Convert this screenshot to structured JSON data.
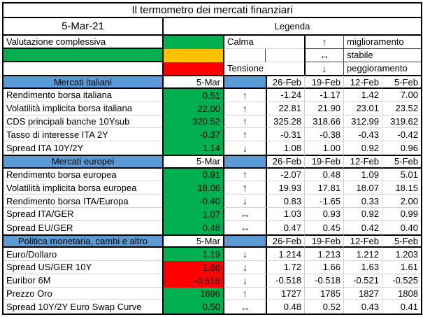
{
  "title": "Il termometro dei mercati finanziari",
  "date": "5-Mar-21",
  "legend": {
    "header": "Legenda",
    "overall_label": "Valutazione complessiva",
    "calm_label": "Calma",
    "tension_label": "Tensione",
    "arrows": [
      {
        "symbol": "↑",
        "label": "miglioramento"
      },
      {
        "symbol": "↔",
        "label": "stabile"
      },
      {
        "symbol": "↓",
        "label": "peggioramento"
      }
    ]
  },
  "colors": {
    "green": "#00B050",
    "yellow": "#FFC000",
    "red": "#FF0000",
    "blue": "#5B9BD5",
    "overall_status": "#00B050"
  },
  "trend_symbols": {
    "up": "↑",
    "stable": "↔",
    "down": "↓"
  },
  "columns": {
    "current": "5-Mar",
    "history": [
      "26-Feb",
      "19-Feb",
      "12-Feb",
      "5-Feb"
    ]
  },
  "sections": [
    {
      "name": "Mercati italiani",
      "rows": [
        {
          "label": "Rendimento borsa italiana",
          "value": "0.51",
          "status": "green",
          "trend": "up",
          "history": [
            "-1.24",
            "-1.17",
            "1.42",
            "7.00"
          ]
        },
        {
          "label": "Volatilità implicita borsa italiana",
          "value": "22.00",
          "status": "green",
          "trend": "up",
          "history": [
            "22.81",
            "21.90",
            "23.01",
            "23.52"
          ]
        },
        {
          "label": "CDS principali banche 10Ysub",
          "value": "320.52",
          "status": "green",
          "trend": "up",
          "history": [
            "325.28",
            "318.66",
            "312.99",
            "319.62"
          ]
        },
        {
          "label": "Tasso di interesse ITA 2Y",
          "value": "-0.37",
          "status": "green",
          "trend": "up",
          "history": [
            "-0.31",
            "-0.38",
            "-0.43",
            "-0.42"
          ]
        },
        {
          "label": "Spread ITA 10Y/2Y",
          "value": "1.14",
          "status": "green",
          "trend": "down",
          "history": [
            "1.08",
            "1.00",
            "0.92",
            "0.96"
          ]
        }
      ]
    },
    {
      "name": "Mercati europei",
      "rows": [
        {
          "label": "Rendimento borsa europea",
          "value": "0.91",
          "status": "green",
          "trend": "up",
          "history": [
            "-2.07",
            "0.48",
            "1.09",
            "5.01"
          ]
        },
        {
          "label": "Volatilità implicita borsa europea",
          "value": "18.06",
          "status": "green",
          "trend": "up",
          "history": [
            "19.93",
            "17.81",
            "18.07",
            "18.15"
          ]
        },
        {
          "label": "Rendimento borsa ITA/Europa",
          "value": "-0.40",
          "status": "green",
          "trend": "down",
          "history": [
            "0.83",
            "-1.65",
            "0.33",
            "2.00"
          ]
        },
        {
          "label": "Spread ITA/GER",
          "value": "1.07",
          "status": "green",
          "trend": "stable",
          "history": [
            "1.03",
            "0.93",
            "0.92",
            "0.99"
          ]
        },
        {
          "label": "Spread EU/GER",
          "value": "0.48",
          "status": "green",
          "trend": "stable",
          "history": [
            "0.47",
            "0.45",
            "0.42",
            "0.40"
          ]
        }
      ]
    },
    {
      "name": "Politica monetaria, cambi e altro",
      "rows": [
        {
          "label": "Euro/Dollaro",
          "value": "1.19",
          "status": "green",
          "trend": "down",
          "history": [
            "1.214",
            "1.213",
            "1.212",
            "1.203"
          ]
        },
        {
          "label": "Spread US/GER 10Y",
          "value": "1.86",
          "status": "red",
          "trend": "down",
          "history": [
            "1.72",
            "1.66",
            "1.63",
            "1.61"
          ]
        },
        {
          "label": "Euribor 6M",
          "value": "-0.518",
          "status": "red",
          "trend": "down",
          "history": [
            "-0.518",
            "-0.518",
            "-0.521",
            "-0.525"
          ]
        },
        {
          "label": "Prezzo Oro",
          "value": "1696",
          "status": "green",
          "trend": "up",
          "history": [
            "1727",
            "1785",
            "1827",
            "1808"
          ]
        },
        {
          "label": "Spread 10Y/2Y Euro Swap Curve",
          "value": "0.50",
          "status": "green",
          "trend": "stable",
          "history": [
            "0.48",
            "0.52",
            "0.43",
            "0.41"
          ]
        }
      ]
    }
  ]
}
